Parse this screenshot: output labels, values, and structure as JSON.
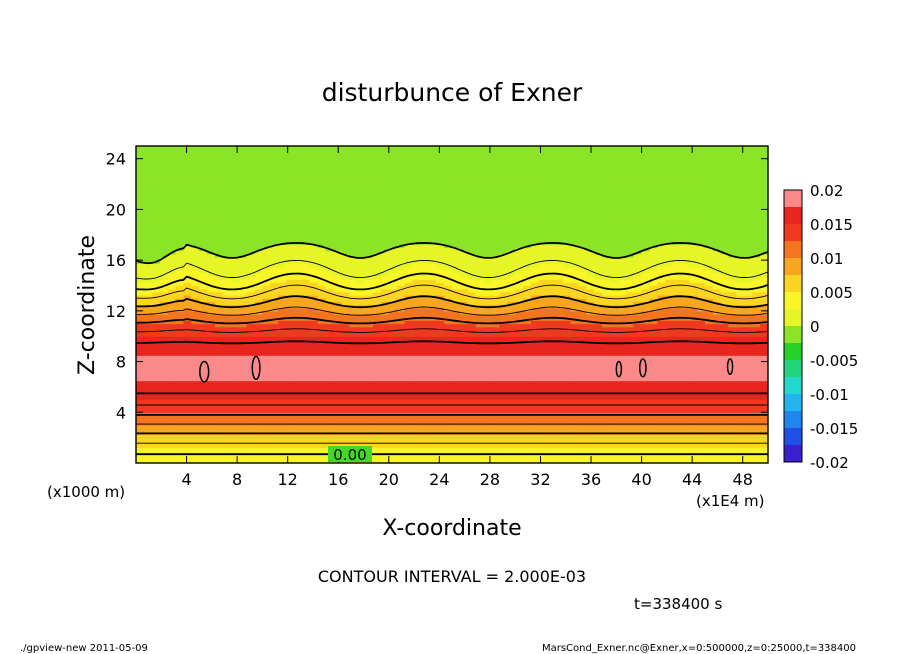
{
  "chart_data": {
    "type": "heatmap",
    "title": "disturbunce of Exner",
    "xlabel": "X-coordinate",
    "ylabel": "Z-coordinate",
    "x_units_left": "(x1000 m)",
    "x_units_right": "(x1E4 m)",
    "xlim": [
      0,
      50
    ],
    "ylim": [
      0,
      25
    ],
    "x_ticks": [
      4,
      8,
      12,
      16,
      20,
      24,
      28,
      32,
      36,
      40,
      44,
      48
    ],
    "y_ticks": [
      4,
      8,
      12,
      16,
      20,
      24
    ],
    "colorbar": {
      "min": -0.02,
      "max": 0.02,
      "step": 0.0025,
      "tick_values": [
        0.02,
        0.015,
        0.01,
        0.005,
        0,
        -0.005,
        -0.01,
        -0.015,
        -0.02
      ],
      "tick_labels": [
        "0.02",
        "0.015",
        "0.01",
        "0.005",
        "0",
        "-0.005",
        "-0.01",
        "-0.015",
        "-0.02"
      ],
      "colors": [
        "#7a1fa0",
        "#3a1fd0",
        "#1f4fe6",
        "#1f86ef",
        "#22b4ee",
        "#22d8cf",
        "#22d47a",
        "#26d026",
        "#8be526",
        "#e6f526",
        "#f9f526",
        "#fbd51f",
        "#f8a51f",
        "#f4741f",
        "#ef3a1f",
        "#e8261f",
        "#fa8a8a"
      ]
    },
    "contour_label": "0.00",
    "contour_interval": "CONTOUR INTERVAL = 2.000E-03",
    "time_label": "t=338400 s"
  },
  "footer": {
    "left": "./gpview-new   2011-05-09",
    "right": "MarsCond_Exner.nc@Exner,x=0:500000,z=0:25000,t=338400"
  }
}
